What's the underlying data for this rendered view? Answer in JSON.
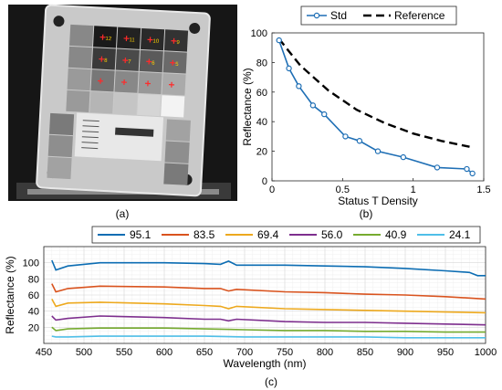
{
  "panels": {
    "a_label": "(a)",
    "b_label": "(b)",
    "c_label": "(c)"
  },
  "photo": {
    "patch_labels": [
      "12",
      "11",
      "10",
      "9",
      "8",
      "7",
      "6",
      "5"
    ]
  },
  "colors": {
    "std": "#1f6fb5",
    "reference": "#000000",
    "series": [
      "#0c6db3",
      "#d9531e",
      "#eda91e",
      "#7e2f8e",
      "#76ab2f",
      "#4fbfe8"
    ]
  },
  "chart_data": [
    {
      "type": "line",
      "panel": "b",
      "xlabel": "Status T Density",
      "ylabel": "Reflectance (%)",
      "xlim": [
        0,
        1.5
      ],
      "ylim": [
        0,
        100
      ],
      "xticks": [
        "0",
        "0.5",
        "1",
        "1.5"
      ],
      "yticks": [
        "0",
        "20",
        "40",
        "60",
        "80",
        "100"
      ],
      "legend": "top",
      "grid": false,
      "series": [
        {
          "name": "Std",
          "style": "solid-circle",
          "x": [
            0.05,
            0.12,
            0.19,
            0.29,
            0.37,
            0.52,
            0.62,
            0.75,
            0.93,
            1.17,
            1.38,
            1.42
          ],
          "y": [
            95,
            76,
            64,
            51,
            45,
            30,
            27,
            20,
            16,
            9,
            8,
            5
          ]
        },
        {
          "name": "Reference",
          "style": "dashed",
          "x": [
            0.05,
            0.2,
            0.4,
            0.6,
            0.8,
            1.0,
            1.2,
            1.4
          ],
          "y": [
            96,
            78,
            61,
            48,
            39,
            32,
            27,
            23
          ]
        }
      ]
    },
    {
      "type": "line",
      "panel": "c",
      "xlabel": "Wavelength (nm)",
      "ylabel": "Reflectance (%)",
      "xlim": [
        450,
        1000
      ],
      "ylim": [
        0,
        120
      ],
      "xticks": [
        "450",
        "500",
        "550",
        "600",
        "650",
        "700",
        "750",
        "800",
        "850",
        "900",
        "950",
        "1000"
      ],
      "yticks": [
        "20",
        "40",
        "60",
        "80",
        "100"
      ],
      "legend": "top",
      "grid": true,
      "series": [
        {
          "name": "95.1",
          "x": [
            460,
            465,
            480,
            520,
            600,
            650,
            670,
            680,
            690,
            750,
            800,
            850,
            900,
            950,
            980,
            990,
            1000
          ],
          "y": [
            103,
            91,
            96,
            100,
            100,
            99,
            98,
            102,
            97,
            97,
            96,
            95,
            93,
            90,
            88,
            84,
            84
          ]
        },
        {
          "name": "83.5",
          "x": [
            460,
            465,
            480,
            520,
            600,
            650,
            670,
            680,
            690,
            750,
            800,
            850,
            900,
            950,
            1000
          ],
          "y": [
            74,
            64,
            68,
            71,
            70,
            68,
            68,
            65,
            67,
            64,
            63,
            61,
            60,
            58,
            55
          ]
        },
        {
          "name": "69.4",
          "x": [
            460,
            465,
            480,
            520,
            600,
            650,
            670,
            680,
            690,
            750,
            800,
            850,
            900,
            950,
            1000
          ],
          "y": [
            55,
            46,
            50,
            51,
            49,
            47,
            46,
            43,
            46,
            43,
            42,
            41,
            40,
            39,
            38
          ]
        },
        {
          "name": "56.0",
          "x": [
            460,
            465,
            480,
            520,
            600,
            650,
            670,
            680,
            690,
            750,
            800,
            850,
            900,
            950,
            1000
          ],
          "y": [
            34,
            29,
            31,
            34,
            32,
            30,
            30,
            28,
            30,
            27,
            26,
            26,
            25,
            24,
            23
          ]
        },
        {
          "name": "40.9",
          "x": [
            460,
            465,
            480,
            520,
            600,
            650,
            700,
            750,
            800,
            850,
            900,
            950,
            1000
          ],
          "y": [
            20,
            16,
            18,
            19,
            19,
            18,
            17,
            16,
            16,
            15,
            15,
            14,
            14
          ]
        },
        {
          "name": "24.1",
          "x": [
            460,
            465,
            480,
            520,
            600,
            650,
            700,
            750,
            800,
            850,
            900,
            950,
            1000
          ],
          "y": [
            9,
            8,
            8,
            9,
            9,
            9,
            8,
            8,
            8,
            8,
            7,
            7,
            7
          ]
        }
      ]
    }
  ]
}
